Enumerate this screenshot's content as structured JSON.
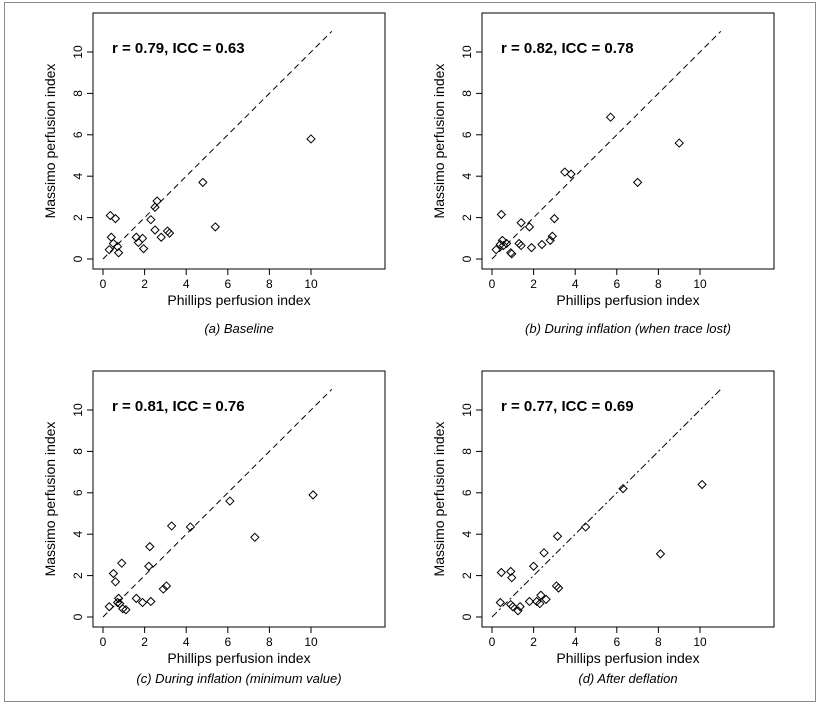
{
  "chart_data": [
    {
      "type": "scatter",
      "annotation": "r = 0.79, ICC = 0.63",
      "xlabel": "Phillips perfusion index",
      "ylabel": "Massimo perfusion index",
      "caption": "(a) Baseline",
      "xlim": [
        0,
        11
      ],
      "ylim": [
        0,
        11
      ],
      "xticks": [
        "0",
        "2",
        "4",
        "6",
        "8",
        "10"
      ],
      "yticks": [
        "0",
        "2",
        "4",
        "6",
        "8",
        "10"
      ],
      "reference_line": "identity (y = x), dashed",
      "grid": false,
      "points": [
        [
          0.3,
          0.45
        ],
        [
          0.4,
          1.05
        ],
        [
          0.35,
          2.1
        ],
        [
          0.6,
          1.95
        ],
        [
          0.5,
          0.75
        ],
        [
          0.7,
          0.6
        ],
        [
          0.75,
          0.3
        ],
        [
          1.6,
          1.05
        ],
        [
          1.7,
          0.8
        ],
        [
          1.9,
          1.0
        ],
        [
          1.95,
          0.5
        ],
        [
          2.3,
          1.9
        ],
        [
          2.5,
          2.5
        ],
        [
          2.6,
          2.8
        ],
        [
          2.5,
          1.4
        ],
        [
          2.8,
          1.05
        ],
        [
          3.1,
          1.35
        ],
        [
          3.2,
          1.25
        ],
        [
          4.8,
          3.7
        ],
        [
          5.4,
          1.55
        ],
        [
          10.0,
          5.8
        ]
      ]
    },
    {
      "type": "scatter",
      "annotation": "r = 0.82, ICC = 0.78",
      "xlabel": "Phillips perfusion index",
      "ylabel": "Massimo perfusion index",
      "caption": "(b) During inflation (when trace lost)",
      "xlim": [
        0,
        11
      ],
      "ylim": [
        0,
        11
      ],
      "xticks": [
        "0",
        "2",
        "4",
        "6",
        "8",
        "10"
      ],
      "yticks": [
        "0",
        "2",
        "4",
        "6",
        "8",
        "10"
      ],
      "reference_line": "identity (y = x), dashed",
      "grid": false,
      "points": [
        [
          0.2,
          0.45
        ],
        [
          0.4,
          0.7
        ],
        [
          0.45,
          2.15
        ],
        [
          0.5,
          0.9
        ],
        [
          0.55,
          0.65
        ],
        [
          0.7,
          0.75
        ],
        [
          0.9,
          0.3
        ],
        [
          0.95,
          0.25
        ],
        [
          1.3,
          0.75
        ],
        [
          1.4,
          0.65
        ],
        [
          1.4,
          1.75
        ],
        [
          1.8,
          1.55
        ],
        [
          1.9,
          0.55
        ],
        [
          2.4,
          0.7
        ],
        [
          2.8,
          0.9
        ],
        [
          2.9,
          1.1
        ],
        [
          3.0,
          1.95
        ],
        [
          3.5,
          4.2
        ],
        [
          3.8,
          4.1
        ],
        [
          5.7,
          6.85
        ],
        [
          7.0,
          3.7
        ],
        [
          9.0,
          5.6
        ]
      ]
    },
    {
      "type": "scatter",
      "annotation": "r = 0.81, ICC = 0.76",
      "xlabel": "Phillips perfusion index",
      "ylabel": "Massimo perfusion index",
      "caption": "(c) During inflation (minimum value)",
      "xlim": [
        0,
        11
      ],
      "ylim": [
        0,
        11
      ],
      "xticks": [
        "0",
        "2",
        "4",
        "6",
        "8",
        "10"
      ],
      "yticks": [
        "0",
        "2",
        "4",
        "6",
        "8",
        "10"
      ],
      "reference_line": "identity (y = x), dashed",
      "grid": false,
      "points": [
        [
          0.3,
          0.5
        ],
        [
          0.5,
          2.1
        ],
        [
          0.6,
          1.7
        ],
        [
          0.7,
          0.7
        ],
        [
          0.75,
          0.9
        ],
        [
          0.8,
          0.65
        ],
        [
          0.9,
          2.6
        ],
        [
          0.95,
          0.4
        ],
        [
          1.1,
          0.35
        ],
        [
          1.6,
          0.9
        ],
        [
          1.9,
          0.7
        ],
        [
          2.2,
          2.45
        ],
        [
          2.25,
          3.4
        ],
        [
          2.3,
          0.75
        ],
        [
          2.9,
          1.35
        ],
        [
          3.05,
          1.5
        ],
        [
          3.3,
          4.4
        ],
        [
          4.2,
          4.35
        ],
        [
          6.1,
          5.6
        ],
        [
          7.3,
          3.85
        ],
        [
          10.1,
          5.9
        ]
      ]
    },
    {
      "type": "scatter",
      "annotation": "r = 0.77, ICC = 0.69",
      "xlabel": "Phillips perfusion index",
      "ylabel": "Massimo perfusion index",
      "caption": "(d) After deflation",
      "xlim": [
        0,
        11
      ],
      "ylim": [
        0,
        11
      ],
      "xticks": [
        "0",
        "2",
        "4",
        "6",
        "8",
        "10"
      ],
      "yticks": [
        "0",
        "2",
        "4",
        "6",
        "8",
        "10"
      ],
      "reference_line": "identity (y = x), dot-dash",
      "grid": false,
      "points": [
        [
          0.4,
          0.7
        ],
        [
          0.45,
          2.15
        ],
        [
          0.9,
          2.2
        ],
        [
          0.9,
          0.6
        ],
        [
          0.95,
          1.9
        ],
        [
          1.0,
          0.5
        ],
        [
          1.25,
          0.3
        ],
        [
          1.35,
          0.5
        ],
        [
          1.8,
          0.75
        ],
        [
          2.0,
          2.45
        ],
        [
          2.15,
          0.75
        ],
        [
          2.3,
          0.65
        ],
        [
          2.35,
          1.05
        ],
        [
          2.5,
          3.1
        ],
        [
          2.6,
          0.85
        ],
        [
          3.1,
          1.5
        ],
        [
          3.15,
          3.9
        ],
        [
          3.2,
          1.4
        ],
        [
          4.5,
          4.35
        ],
        [
          6.3,
          6.2
        ],
        [
          8.1,
          3.05
        ],
        [
          10.1,
          6.4
        ]
      ]
    }
  ]
}
